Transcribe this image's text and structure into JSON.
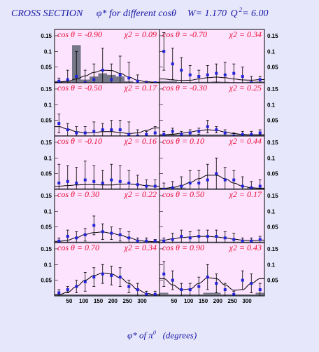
{
  "title": {
    "cross_section": "CROSS SECTION",
    "phi_for": "φ* for different cosθ",
    "w": "W= 1.170",
    "q2_label": "Q",
    "q2_exp": "2",
    "q2_value": "= 6.00"
  },
  "x_axis_label": {
    "text": "φ* of π",
    "superscript": "0",
    "unit": "(degrees)"
  },
  "chart_data": {
    "type": "scatter",
    "layout": "5x2 grid",
    "x_range": [
      0,
      360
    ],
    "y_range": [
      0,
      0.17
    ],
    "x_ticks": [
      "50",
      "100",
      "150",
      "200",
      "250",
      "300"
    ],
    "y_ticks": [
      "0.15",
      "0.1",
      "0.05"
    ],
    "colors": {
      "panel_bg": "#fde3fd",
      "point": "#2222dd",
      "fit": "#000000",
      "hist": "#77778a",
      "label": "#e8103a"
    },
    "phi": [
      15,
      45,
      75,
      105,
      135,
      165,
      195,
      225,
      255,
      285,
      315,
      345
    ],
    "panels": [
      {
        "label": "cos θ = -0.90",
        "chi2": "χ2 = 0.09",
        "y": [
          0.005,
          0.01,
          0.02,
          0.0,
          0.01,
          0.04,
          0.01,
          0.025,
          0.015,
          0.005,
          0.0,
          0.0
        ],
        "err": [
          0.01,
          0.03,
          0.08,
          0.04,
          0.05,
          0.07,
          0.05,
          0.06,
          0.05,
          0.02,
          0.005,
          0.0
        ],
        "fit": [
          0.002,
          0.005,
          0.012,
          0.022,
          0.033,
          0.04,
          0.039,
          0.03,
          0.018,
          0.008,
          0.003,
          0.002
        ],
        "hist": [
          0.005,
          0.005,
          0.12,
          0.01,
          0.02,
          0.03,
          0.025,
          0.02,
          0.005,
          0.0,
          0.0,
          0.0
        ]
      },
      {
        "label": "cos θ = -0.70",
        "chi2": "χ2 = 0.34",
        "y": [
          0.1,
          0.06,
          0.04,
          0.025,
          0.02,
          0.025,
          0.03,
          0.025,
          0.03,
          0.02,
          0.0,
          0.01
        ],
        "err": [
          0.06,
          0.05,
          0.04,
          0.03,
          0.02,
          0.03,
          0.03,
          0.04,
          0.03,
          0.03,
          0.02,
          0.01
        ],
        "fit": [
          0.012,
          0.009,
          0.007,
          0.008,
          0.012,
          0.016,
          0.018,
          0.016,
          0.012,
          0.009,
          0.008,
          0.01
        ],
        "hist": [
          0.005,
          0.005,
          0.002,
          0.002,
          0.003,
          0.003,
          0.004,
          0.003,
          0.002,
          0.002,
          0.003,
          0.004
        ]
      },
      {
        "label": "cos θ = -0.50",
        "chi2": "χ2 = 0.17",
        "y": [
          0.04,
          0.02,
          0.01,
          0.01,
          0.015,
          0.02,
          0.02,
          0.02,
          0.005,
          0.0,
          0.005,
          0.01
        ],
        "err": [
          0.03,
          0.02,
          0.02,
          0.02,
          0.03,
          0.02,
          0.03,
          0.03,
          0.04,
          0.02,
          0.01,
          0.02
        ],
        "fit": [
          0.03,
          0.022,
          0.014,
          0.01,
          0.011,
          0.014,
          0.014,
          0.011,
          0.008,
          0.01,
          0.018,
          0.026
        ],
        "hist": [
          0.002,
          0.002,
          0.002,
          0.002,
          0.002,
          0.002,
          0.002,
          0.002,
          0.002,
          0.002,
          0.002,
          0.002
        ]
      },
      {
        "label": "cos θ = -0.30",
        "chi2": "χ2 = 0.25",
        "y": [
          0.005,
          0.015,
          0.005,
          0.01,
          0.015,
          0.03,
          0.02,
          0.01,
          0.0,
          0.005,
          0.005,
          0.01
        ],
        "err": [
          0.01,
          0.01,
          0.01,
          0.01,
          0.01,
          0.02,
          0.01,
          0.01,
          0.01,
          0.01,
          0.01,
          0.01
        ],
        "fit": [
          0.004,
          0.006,
          0.009,
          0.013,
          0.017,
          0.02,
          0.018,
          0.013,
          0.008,
          0.005,
          0.004,
          0.004
        ],
        "hist": [
          0.005,
          0.005,
          0.005,
          0.005,
          0.005,
          0.005,
          0.005,
          0.005,
          0.005,
          0.005,
          0.005,
          0.005
        ]
      },
      {
        "label": "cos θ = -0.10",
        "chi2": "χ2 = 0.16",
        "y": [
          0.02,
          0.025,
          0.02,
          0.03,
          0.025,
          0.02,
          0.03,
          0.025,
          0.02,
          0.015,
          0.01,
          0.01
        ],
        "err": [
          0.06,
          0.05,
          0.05,
          0.06,
          0.05,
          0.04,
          0.05,
          0.05,
          0.04,
          0.03,
          0.02,
          0.02
        ],
        "fit": [
          0.01,
          0.012,
          0.014,
          0.015,
          0.015,
          0.014,
          0.014,
          0.016,
          0.017,
          0.015,
          0.012,
          0.01
        ],
        "hist": [
          0.003,
          0.003,
          0.003,
          0.003,
          0.003,
          0.003,
          0.003,
          0.003,
          0.003,
          0.003,
          0.003,
          0.003
        ]
      },
      {
        "label": "cos θ = 0.10",
        "chi2": "χ2 = 0.44",
        "y": [
          0.0,
          0.005,
          0.01,
          0.02,
          0.02,
          0.03,
          0.05,
          0.03,
          0.03,
          0.01,
          0.005,
          0.01
        ],
        "err": [
          0.02,
          0.02,
          0.03,
          0.04,
          0.04,
          0.05,
          0.05,
          0.04,
          0.03,
          0.03,
          0.02,
          0.02
        ],
        "fit": [
          0.003,
          0.006,
          0.012,
          0.022,
          0.034,
          0.045,
          0.045,
          0.034,
          0.02,
          0.01,
          0.005,
          0.003
        ],
        "hist": [
          0.005,
          0.005,
          0.005,
          0.003,
          0.003,
          0.003,
          0.003,
          0.003,
          0.003,
          0.003,
          0.005,
          0.005
        ]
      },
      {
        "label": "cos θ = 0.30",
        "chi2": "χ2 = 0.22",
        "y": [
          0.005,
          0.02,
          0.015,
          0.025,
          0.055,
          0.035,
          0.03,
          0.025,
          0.015,
          0.005,
          0.005,
          0.005
        ],
        "err": [
          0.01,
          0.02,
          0.02,
          0.02,
          0.03,
          0.025,
          0.02,
          0.02,
          0.02,
          0.01,
          0.01,
          0.005
        ],
        "fit": [
          0.004,
          0.008,
          0.016,
          0.026,
          0.032,
          0.034,
          0.03,
          0.024,
          0.016,
          0.008,
          0.004,
          0.003
        ],
        "hist": [
          0.003,
          0.003,
          0.003,
          0.003,
          0.003,
          0.003,
          0.003,
          0.003,
          0.003,
          0.003,
          0.003,
          0.003
        ]
      },
      {
        "label": "cos θ = 0.50",
        "chi2": "χ2 = 0.17",
        "y": [
          0.005,
          0.01,
          0.02,
          0.015,
          0.02,
          0.02,
          0.02,
          0.015,
          0.01,
          0.005,
          0.005,
          0.01
        ],
        "err": [
          0.01,
          0.02,
          0.02,
          0.02,
          0.02,
          0.02,
          0.02,
          0.02,
          0.02,
          0.01,
          0.01,
          0.01
        ],
        "fit": [
          0.008,
          0.012,
          0.016,
          0.018,
          0.02,
          0.02,
          0.018,
          0.015,
          0.011,
          0.008,
          0.007,
          0.008
        ],
        "hist": [
          0.003,
          0.003,
          0.003,
          0.003,
          0.003,
          0.003,
          0.003,
          0.003,
          0.003,
          0.003,
          0.003,
          0.003
        ]
      },
      {
        "label": "cos θ = 0.70",
        "chi2": "χ2 = 0.34",
        "y": [
          0.01,
          0.02,
          0.03,
          0.045,
          0.06,
          0.07,
          0.065,
          0.06,
          0.03,
          0.02,
          0.005,
          0.005
        ],
        "err": [
          0.01,
          0.01,
          0.02,
          0.03,
          0.03,
          0.03,
          0.03,
          0.03,
          0.02,
          0.02,
          0.01,
          0.01
        ],
        "fit": [
          0.004,
          0.012,
          0.03,
          0.05,
          0.065,
          0.073,
          0.07,
          0.058,
          0.04,
          0.02,
          0.008,
          0.004
        ],
        "hist": [
          0.005,
          0.005,
          0.005,
          0.005,
          0.005,
          0.005,
          0.005,
          0.005,
          0.005,
          0.005,
          0.005,
          0.005
        ]
      },
      {
        "label": "cos θ = 0.90",
        "chi2": "χ2 = 0.43",
        "y": [
          0.07,
          0.05,
          0.02,
          0.02,
          0.03,
          0.06,
          0.04,
          0.02,
          0.005,
          0.05,
          0.04,
          0.02
        ],
        "err": [
          0.04,
          0.03,
          0.02,
          0.02,
          0.03,
          0.04,
          0.03,
          0.02,
          0.01,
          0.03,
          0.03,
          0.02
        ],
        "fit": [
          0.055,
          0.035,
          0.02,
          0.022,
          0.04,
          0.058,
          0.055,
          0.035,
          0.018,
          0.02,
          0.04,
          0.055
        ],
        "hist": [
          0.01,
          0.005,
          0.005,
          0.005,
          0.005,
          0.01,
          0.01,
          0.005,
          0.005,
          0.005,
          0.005,
          0.01
        ]
      }
    ]
  }
}
